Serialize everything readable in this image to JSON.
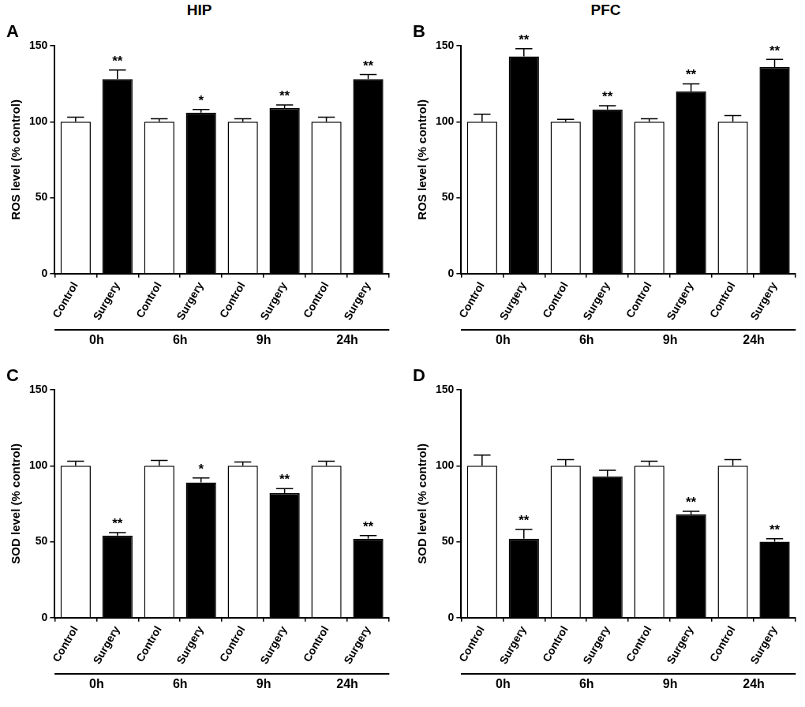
{
  "chart_data": [
    {
      "type": "bar",
      "panel": "A",
      "title": "HIP",
      "y_label": "ROS level (% control)",
      "categories": [
        "Control",
        "Surgery",
        "Control",
        "Surgery",
        "Control",
        "Surgery",
        "Control",
        "Surgery"
      ],
      "group_labels": [
        "0h",
        "6h",
        "9h",
        "24h"
      ],
      "values": [
        100,
        128,
        100,
        106,
        100,
        109,
        100,
        128
      ],
      "errors": [
        3,
        6,
        2,
        2,
        2,
        2,
        3,
        3
      ],
      "significance": [
        null,
        "**",
        null,
        "*",
        null,
        "**",
        null,
        "**"
      ],
      "colors": [
        "#ffffff",
        "#000000",
        "#ffffff",
        "#000000",
        "#ffffff",
        "#000000",
        "#ffffff",
        "#000000"
      ],
      "ylim": [
        0,
        150
      ],
      "yticks": [
        0,
        50,
        100,
        150
      ],
      "grid": false
    },
    {
      "type": "bar",
      "panel": "B",
      "title": "PFC",
      "y_label": "ROS level (% control)",
      "categories": [
        "Control",
        "Surgery",
        "Control",
        "Surgery",
        "Control",
        "Surgery",
        "Control",
        "Surgery"
      ],
      "group_labels": [
        "0h",
        "6h",
        "9h",
        "24h"
      ],
      "values": [
        100,
        143,
        100,
        108,
        100,
        120,
        100,
        136
      ],
      "errors": [
        5,
        5,
        1.5,
        2.5,
        2,
        5,
        4,
        5
      ],
      "significance": [
        null,
        "**",
        null,
        "**",
        null,
        "**",
        null,
        "**"
      ],
      "colors": [
        "#ffffff",
        "#000000",
        "#ffffff",
        "#000000",
        "#ffffff",
        "#000000",
        "#ffffff",
        "#000000"
      ],
      "ylim": [
        0,
        150
      ],
      "yticks": [
        0,
        50,
        100,
        150
      ],
      "grid": false
    },
    {
      "type": "bar",
      "panel": "C",
      "y_label": "SOD level (% control)",
      "categories": [
        "Control",
        "Surgery",
        "Control",
        "Surgery",
        "Control",
        "Surgery",
        "Control",
        "Surgery"
      ],
      "group_labels": [
        "0h",
        "6h",
        "9h",
        "24h"
      ],
      "values": [
        100,
        54,
        100,
        89,
        100,
        82,
        100,
        52
      ],
      "errors": [
        3,
        2,
        3.5,
        3,
        2.5,
        3,
        3,
        2
      ],
      "significance": [
        null,
        "**",
        null,
        "*",
        null,
        "**",
        null,
        "**"
      ],
      "colors": [
        "#ffffff",
        "#000000",
        "#ffffff",
        "#000000",
        "#ffffff",
        "#000000",
        "#ffffff",
        "#000000"
      ],
      "ylim": [
        0,
        150
      ],
      "yticks": [
        0,
        50,
        100,
        150
      ],
      "grid": false
    },
    {
      "type": "bar",
      "panel": "D",
      "y_label": "SOD level (% control)",
      "categories": [
        "Control",
        "Surgery",
        "Control",
        "Surgery",
        "Control",
        "Surgery",
        "Control",
        "Surgery"
      ],
      "group_labels": [
        "0h",
        "6h",
        "9h",
        "24h"
      ],
      "values": [
        100,
        52,
        100,
        93,
        100,
        68,
        100,
        50
      ],
      "errors": [
        7,
        6,
        4,
        4,
        3,
        2,
        4,
        2
      ],
      "significance": [
        null,
        "**",
        null,
        null,
        null,
        "**",
        null,
        "**"
      ],
      "colors": [
        "#ffffff",
        "#000000",
        "#ffffff",
        "#000000",
        "#ffffff",
        "#000000",
        "#ffffff",
        "#000000"
      ],
      "ylim": [
        0,
        150
      ],
      "yticks": [
        0,
        50,
        100,
        150
      ],
      "grid": false
    }
  ]
}
